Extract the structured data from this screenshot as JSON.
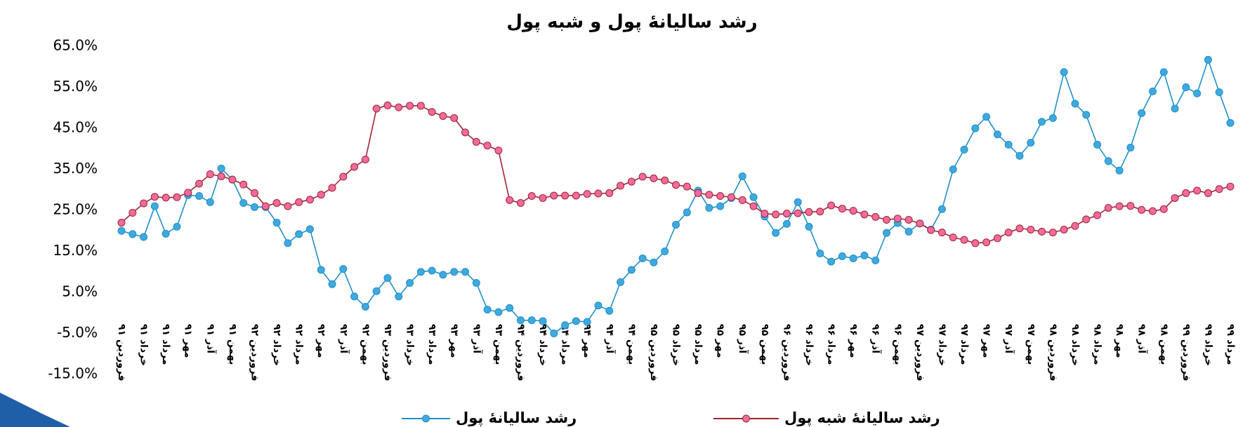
{
  "chart_data": {
    "type": "line",
    "title": "رشد سالیانهٔ پول و شبه پول",
    "categories": [
      "فروردین ۹۱",
      null,
      "خرداد ۹۱",
      null,
      "مرداد ۹۱",
      null,
      "مهر ۹۱",
      null,
      "آذر ۹۱",
      null,
      "بهمن ۹۱",
      null,
      "فروردین ۹۲",
      null,
      "خرداد ۹۲",
      null,
      "مرداد ۹۲",
      null,
      "مهر ۹۲",
      null,
      "آذر ۹۲",
      null,
      "بهمن ۹۲",
      null,
      "فروردین ۹۳",
      null,
      "خرداد ۹۳",
      null,
      "مرداد ۹۳",
      null,
      "مهر ۹۳",
      null,
      "آذر ۹۳",
      null,
      "بهمن ۹۳",
      null,
      "فروردین ۹۴",
      null,
      "خرداد ۹۴",
      null,
      "مرداد ۹۴",
      null,
      "مهر ۹۴",
      null,
      "آذر ۹۴",
      null,
      "بهمن ۹۴",
      null,
      "فروردین ۹۵",
      null,
      "خرداد ۹۵",
      null,
      "مرداد ۹۵",
      null,
      "مهر ۹۵",
      null,
      "آذر ۹۵",
      null,
      "بهمن ۹۵",
      null,
      "فروردین ۹۶",
      null,
      "خرداد ۹۶",
      null,
      "مرداد ۹۶",
      null,
      "مهر ۹۶",
      null,
      "آذر ۹۶",
      null,
      "بهمن ۹۶",
      null,
      "فروردین ۹۷",
      null,
      "خرداد ۹۷",
      null,
      "مرداد ۹۷",
      null,
      "مهر ۹۷",
      null,
      "آذر ۹۷",
      null,
      "بهمن ۹۷",
      null,
      "فروردین ۹۸",
      null,
      "خرداد ۹۸",
      null,
      "مرداد ۹۸",
      null,
      "مهر ۹۸",
      null,
      "آذر ۹۸",
      null,
      "بهمن ۹۸",
      null,
      "فروردین ۹۹",
      null,
      "خرداد ۹۹",
      null,
      "مرداد ۹۹"
    ],
    "series": [
      {
        "name": "رشد سالیانهٔ پول",
        "color": "#1f8fc8",
        "marker_color": "#3fa9de",
        "values": [
          20,
          19.2,
          18.5,
          26,
          19.3,
          21,
          28.7,
          28.5,
          27,
          35.2,
          32.5,
          26.8,
          25.8,
          25.8,
          22,
          17,
          19.2,
          20.4,
          10.5,
          7,
          10.7,
          4,
          1.5,
          5.3,
          8.5,
          4,
          7.3,
          10,
          10.3,
          9.3,
          10,
          10,
          7.3,
          0.8,
          0.2,
          1.2,
          -1.8,
          -1.8,
          -2,
          -5,
          -3,
          -2,
          -2.2,
          1.8,
          0.5,
          7.5,
          10.5,
          13.3,
          12.3,
          15,
          21.5,
          24.5,
          29.8,
          25.6,
          26,
          28,
          33.3,
          28.2,
          23.5,
          19.5,
          21.7,
          27,
          21,
          14.5,
          12.5,
          13.8,
          13.3,
          14,
          12.8,
          19.5,
          21.9,
          19.8,
          21.8,
          20.3,
          25.3,
          35,
          39.8,
          45,
          47.8,
          43.5,
          41,
          38.3,
          41.5,
          46.6,
          47.5,
          58.7,
          51,
          48.3,
          41,
          37,
          34.7,
          40.3,
          48.7,
          54,
          58.7,
          49.8,
          55,
          53.5,
          61.7,
          53.8,
          46.3
        ]
      },
      {
        "name": "رشد سالیانهٔ شبه پول",
        "color": "#a0252f",
        "marker_color": "#f06aa0",
        "values": [
          22,
          24.4,
          26.7,
          28.3,
          28.1,
          28.2,
          29.3,
          31.5,
          33.8,
          33.3,
          32.5,
          31.3,
          29.2,
          26,
          26.8,
          26,
          27,
          27.6,
          28.8,
          30.5,
          33.2,
          35.6,
          37.4,
          49.8,
          50.6,
          50.1,
          50.5,
          50.5,
          49,
          48,
          47.5,
          44,
          41.7,
          40.8,
          39.6,
          27.5,
          26.8,
          28.5,
          28,
          28.6,
          28.6,
          28.6,
          29,
          29.1,
          29.2,
          31,
          32,
          33.2,
          32.8,
          32.3,
          31.2,
          30.8,
          29.2,
          28.8,
          28.5,
          28.2,
          27.5,
          26,
          24.2,
          24,
          24.2,
          24.3,
          24.6,
          24.7,
          26.2,
          25.4,
          24.9,
          24,
          23.4,
          22.7,
          23,
          22.7,
          21.8,
          20.2,
          19.6,
          18.4,
          17.8,
          17,
          17.2,
          18.2,
          19.6,
          20.6,
          20.3,
          19.8,
          19.6,
          20.3,
          21.2,
          22.8,
          23.8,
          25.6,
          26,
          26.1,
          25.1,
          24.8,
          25.3,
          28,
          29.2,
          29.8,
          29.2,
          30.2,
          30.8
        ]
      }
    ],
    "ylim": [
      -15,
      65
    ],
    "yticks": [
      {
        "value": -15,
        "label": "-15.0%"
      },
      {
        "value": -5,
        "label": "-5.0%"
      },
      {
        "value": 5,
        "label": "5.0%"
      },
      {
        "value": 15,
        "label": "15.0%"
      },
      {
        "value": 25,
        "label": "25.0%"
      },
      {
        "value": 35,
        "label": "35.0%"
      },
      {
        "value": 45,
        "label": "45.0%"
      },
      {
        "value": 55,
        "label": "55.0%"
      },
      {
        "value": 65,
        "label": "65.0%"
      }
    ],
    "grid": false
  }
}
